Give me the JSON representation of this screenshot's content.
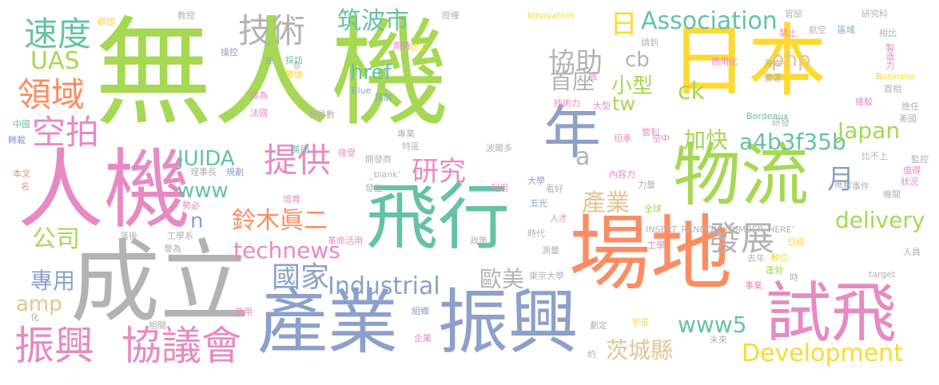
{
  "palette": {
    "green": "#a6d854",
    "pink": "#e78ac3",
    "orange": "#fc8d62",
    "blue": "#8da0cb",
    "teal": "#66c2a5",
    "yellow": "#ffd92f",
    "tan": "#e5c494",
    "gray": "#b3b3b3"
  },
  "words": [
    {
      "id": "w1",
      "text": "無人機",
      "color": "green"
    },
    {
      "id": "w2",
      "text": "日本",
      "color": "yellow"
    },
    {
      "id": "w3",
      "text": "人機",
      "color": "pink"
    },
    {
      "id": "w4",
      "text": "場地",
      "color": "orange"
    },
    {
      "id": "w5",
      "text": "成立",
      "color": "gray"
    },
    {
      "id": "w6",
      "text": "振興",
      "color": "blue"
    },
    {
      "id": "w7",
      "text": "產業",
      "color": "blue"
    },
    {
      "id": "w8",
      "text": "飛行",
      "color": "teal"
    },
    {
      "id": "w9",
      "text": "物流",
      "color": "green"
    },
    {
      "id": "w10",
      "text": "試飛",
      "color": "pink"
    },
    {
      "id": "w11",
      "text": "年",
      "color": "blue"
    },
    {
      "id": "w12",
      "text": "振興",
      "color": "pink"
    },
    {
      "id": "w13",
      "text": "協議會",
      "color": "pink"
    },
    {
      "id": "w14",
      "text": "速度",
      "color": "teal"
    },
    {
      "id": "w15",
      "text": "技術",
      "color": "gray"
    },
    {
      "id": "w16",
      "text": "領域",
      "color": "orange"
    },
    {
      "id": "w17",
      "text": "空拍",
      "color": "pink"
    },
    {
      "id": "w18",
      "text": "提供",
      "color": "pink"
    },
    {
      "id": "w19",
      "text": "研究",
      "color": "pink"
    },
    {
      "id": "w20",
      "text": "協助",
      "color": "gray"
    },
    {
      "id": "w21",
      "text": "Association",
      "color": "teal"
    },
    {
      "id": "w22",
      "text": "日",
      "color": "yellow"
    },
    {
      "id": "w23",
      "text": "筑波市",
      "color": "teal"
    },
    {
      "id": "w24",
      "text": "UAS",
      "color": "green"
    },
    {
      "id": "w25",
      "text": "首座",
      "color": "gray"
    },
    {
      "id": "w26",
      "text": "小型",
      "color": "green"
    },
    {
      "id": "w27",
      "text": "cb",
      "color": "gray"
    },
    {
      "id": "w28",
      "text": "href",
      "color": "teal"
    },
    {
      "id": "w29",
      "text": "ck",
      "color": "green"
    },
    {
      "id": "w30",
      "text": "php",
      "color": "tan"
    },
    {
      "id": "w31",
      "text": "tw",
      "color": "green"
    },
    {
      "id": "w32",
      "text": "a4b3f35b",
      "color": "teal"
    },
    {
      "id": "w33",
      "text": "加快",
      "color": "green"
    },
    {
      "id": "w34",
      "text": "Japan",
      "color": "green"
    },
    {
      "id": "w35",
      "text": "月",
      "color": "blue"
    },
    {
      "id": "w36",
      "text": "JUIDA",
      "color": "teal"
    },
    {
      "id": "w37",
      "text": "www",
      "color": "teal"
    },
    {
      "id": "w38",
      "text": "鈴木眞二",
      "color": "orange"
    },
    {
      "id": "w39",
      "text": "產業",
      "color": "tan"
    },
    {
      "id": "w40",
      "text": "delivery",
      "color": "green"
    },
    {
      "id": "w41",
      "text": "公司",
      "color": "green"
    },
    {
      "id": "w42",
      "text": "technews",
      "color": "pink"
    },
    {
      "id": "w43",
      "text": "發展",
      "color": "gray"
    },
    {
      "id": "w44",
      "text": "國家",
      "color": "blue"
    },
    {
      "id": "w45",
      "text": "Industrial",
      "color": "blue"
    },
    {
      "id": "w46",
      "text": "歐美",
      "color": "gray"
    },
    {
      "id": "w47",
      "text": "專用",
      "color": "blue"
    },
    {
      "id": "w48",
      "text": "amp",
      "color": "tan"
    },
    {
      "id": "w49",
      "text": "www5",
      "color": "teal"
    },
    {
      "id": "w50",
      "text": "茨城縣",
      "color": "tan"
    },
    {
      "id": "w51",
      "text": "Development",
      "color": "yellow"
    },
    {
      "id": "w52",
      "text": "n",
      "color": "blue"
    },
    {
      "id": "w53",
      "text": "a",
      "color": "gray"
    },
    {
      "id": "s1",
      "text": "顧問",
      "color": "yellow"
    },
    {
      "id": "s2",
      "text": "教授",
      "color": "gray"
    },
    {
      "id": "s3",
      "text": "授權",
      "color": "gray"
    },
    {
      "id": "s4",
      "text": "Innovation",
      "color": "yellow"
    },
    {
      "id": "s5",
      "text": "官邸",
      "color": "gray"
    },
    {
      "id": "s6",
      "text": "研究科",
      "color": "gray"
    },
    {
      "id": "s7",
      "text": "操控",
      "color": "blue"
    },
    {
      "id": "s8",
      "text": "採訪",
      "color": "teal"
    },
    {
      "id": "s9",
      "text": "早",
      "color": "blue"
    },
    {
      "id": "s10",
      "text": "期待",
      "color": "pink"
    },
    {
      "id": "s11",
      "text": "防災",
      "color": "yellow"
    },
    {
      "id": "s12",
      "text": "請到",
      "color": "gray"
    },
    {
      "id": "s13",
      "text": "禁止",
      "color": "pink"
    },
    {
      "id": "s14",
      "text": "航空",
      "color": "gray"
    },
    {
      "id": "s15",
      "text": "區域",
      "color": "blue"
    },
    {
      "id": "s16",
      "text": "相比",
      "color": "gray"
    },
    {
      "id": "s17",
      "text": "製造力",
      "color": "pink"
    },
    {
      "id": "s18",
      "text": "鑒據",
      "color": "yellow"
    },
    {
      "id": "s19",
      "text": "非",
      "color": "gray"
    },
    {
      "id": "s20",
      "text": "底",
      "color": "pink"
    },
    {
      "id": "s21",
      "text": "商用化",
      "color": "pink"
    },
    {
      "id": "s22",
      "text": "海岸",
      "color": "gray"
    },
    {
      "id": "s23",
      "text": "營運",
      "color": "gray"
    },
    {
      "id": "s24",
      "text": "Business",
      "color": "yellow"
    },
    {
      "id": "s25",
      "text": "首相",
      "color": "gray"
    },
    {
      "id": "s26",
      "text": "做為",
      "color": "pink"
    },
    {
      "id": "s27",
      "text": "Blue",
      "color": "blue"
    },
    {
      "id": "s28",
      "text": "民防",
      "color": "blue"
    },
    {
      "id": "s29",
      "text": "技術力",
      "color": "pink"
    },
    {
      "id": "s30",
      "text": "大型",
      "color": "pink"
    },
    {
      "id": "s31",
      "text": "Bordeaux",
      "color": "teal"
    },
    {
      "id": "s32",
      "text": "接駁",
      "color": "pink"
    },
    {
      "id": "s33",
      "text": "擔任",
      "color": "gray"
    },
    {
      "id": "s34",
      "text": "法國",
      "color": "pink"
    },
    {
      "id": "s35",
      "text": "研發",
      "color": "gray"
    },
    {
      "id": "s36",
      "text": "美國",
      "color": "gray"
    },
    {
      "id": "s37",
      "text": "中國",
      "color": "teal"
    },
    {
      "id": "s38",
      "text": "會員數",
      "color": "gray"
    },
    {
      "id": "s39",
      "text": "專業",
      "color": "gray"
    },
    {
      "id": "s40",
      "text": "營利",
      "color": "pink"
    },
    {
      "id": "s41",
      "text": "轉載",
      "color": "blue"
    },
    {
      "id": "s42",
      "text": "坦承",
      "color": "pink"
    },
    {
      "id": "s43",
      "text": "空中",
      "color": "pink"
    },
    {
      "id": "s44",
      "text": "開發商",
      "color": "gray"
    },
    {
      "id": "s45",
      "text": "特區",
      "color": "gray"
    },
    {
      "id": "s46",
      "text": "波爾多",
      "color": "gray"
    },
    {
      "id": "s47",
      "text": "英國",
      "color": "teal"
    },
    {
      "id": "s48",
      "text": "接受",
      "color": "pink"
    },
    {
      "id": "s49",
      "text": "內容力",
      "color": "pink"
    },
    {
      "id": "s50",
      "text": "比不上",
      "color": "gray"
    },
    {
      "id": "s51",
      "text": "監控",
      "color": "gray"
    },
    {
      "id": "s52",
      "text": "理事長",
      "color": "gray"
    },
    {
      "id": "s53",
      "text": "規劃",
      "color": "blue"
    },
    {
      "id": "s54",
      "text": "_blank'",
      "color": "gray"
    },
    {
      "id": "s55",
      "text": "力量",
      "color": "gray"
    },
    {
      "id": "s56",
      "text": "推動",
      "color": "gray"
    },
    {
      "id": "s57",
      "text": "值得",
      "color": "pink"
    },
    {
      "id": "s58",
      "text": "本文",
      "color": "orange"
    },
    {
      "id": "s59",
      "text": "名",
      "color": "orange"
    },
    {
      "id": "s60",
      "text": "發生",
      "color": "gray"
    },
    {
      "id": "s61",
      "text": "利用",
      "color": "pink"
    },
    {
      "id": "s62",
      "text": "大學",
      "color": "blue"
    },
    {
      "id": "s63",
      "text": "看好",
      "color": "gray"
    },
    {
      "id": "s64",
      "text": "事件",
      "color": "gray"
    },
    {
      "id": "s65",
      "text": "狀況",
      "color": "pink"
    },
    {
      "id": "s66",
      "text": "機關",
      "color": "gray"
    },
    {
      "id": "s67",
      "text": "培育",
      "color": "pink"
    },
    {
      "id": "s68",
      "text": "勢必",
      "color": "pink"
    },
    {
      "id": "s69",
      "text": "五光",
      "color": "blue"
    },
    {
      "id": "s70",
      "text": "全球",
      "color": "green"
    },
    {
      "id": "s71",
      "text": "人才",
      "color": "pink"
    },
    {
      "id": "s72",
      "text": "落後",
      "color": "gray"
    },
    {
      "id": "s73",
      "text": "工學系",
      "color": "gray"
    },
    {
      "id": "s74",
      "text": "革命",
      "color": "pink"
    },
    {
      "id": "s75",
      "text": "活用",
      "color": "pink"
    },
    {
      "id": "s76",
      "text": "政策",
      "color": "gray"
    },
    {
      "id": "s77",
      "text": "時代",
      "color": "gray"
    },
    {
      "id": "s78",
      "text": "INSERT_RANDOM_NUMBER_HERE'",
      "color": "gray"
    },
    {
      "id": "s79",
      "text": "工學",
      "color": "pink"
    },
    {
      "id": "s80",
      "text": "日經",
      "color": "yellow"
    },
    {
      "id": "s81",
      "text": "譽為",
      "color": "gray"
    },
    {
      "id": "s82",
      "text": "測量",
      "color": "gray"
    },
    {
      "id": "s83",
      "text": "去年",
      "color": "gray"
    },
    {
      "id": "s84",
      "text": "數位",
      "color": "yellow"
    },
    {
      "id": "s85",
      "text": "蓬勃",
      "color": "green"
    },
    {
      "id": "s86",
      "text": "人員",
      "color": "gray"
    },
    {
      "id": "s87",
      "text": "時",
      "color": "gray"
    },
    {
      "id": "s88",
      "text": "東京大學",
      "color": "gray"
    },
    {
      "id": "s89",
      "text": "target",
      "color": "gray"
    },
    {
      "id": "s90",
      "text": "事業",
      "color": "pink"
    },
    {
      "id": "s91",
      "text": "商用",
      "color": "pink"
    },
    {
      "id": "s92",
      "text": "化",
      "color": "gray"
    },
    {
      "id": "s93",
      "text": "組織",
      "color": "blue"
    },
    {
      "id": "s94",
      "text": "相關",
      "color": "gray"
    },
    {
      "id": "s95",
      "text": "劃定",
      "color": "gray"
    },
    {
      "id": "s96",
      "text": "宇宙",
      "color": "yellow"
    },
    {
      "id": "s97",
      "text": "企業",
      "color": "pink"
    },
    {
      "id": "s98",
      "text": "未來",
      "color": "gray"
    },
    {
      "id": "s99",
      "text": "約",
      "color": "gray"
    }
  ]
}
